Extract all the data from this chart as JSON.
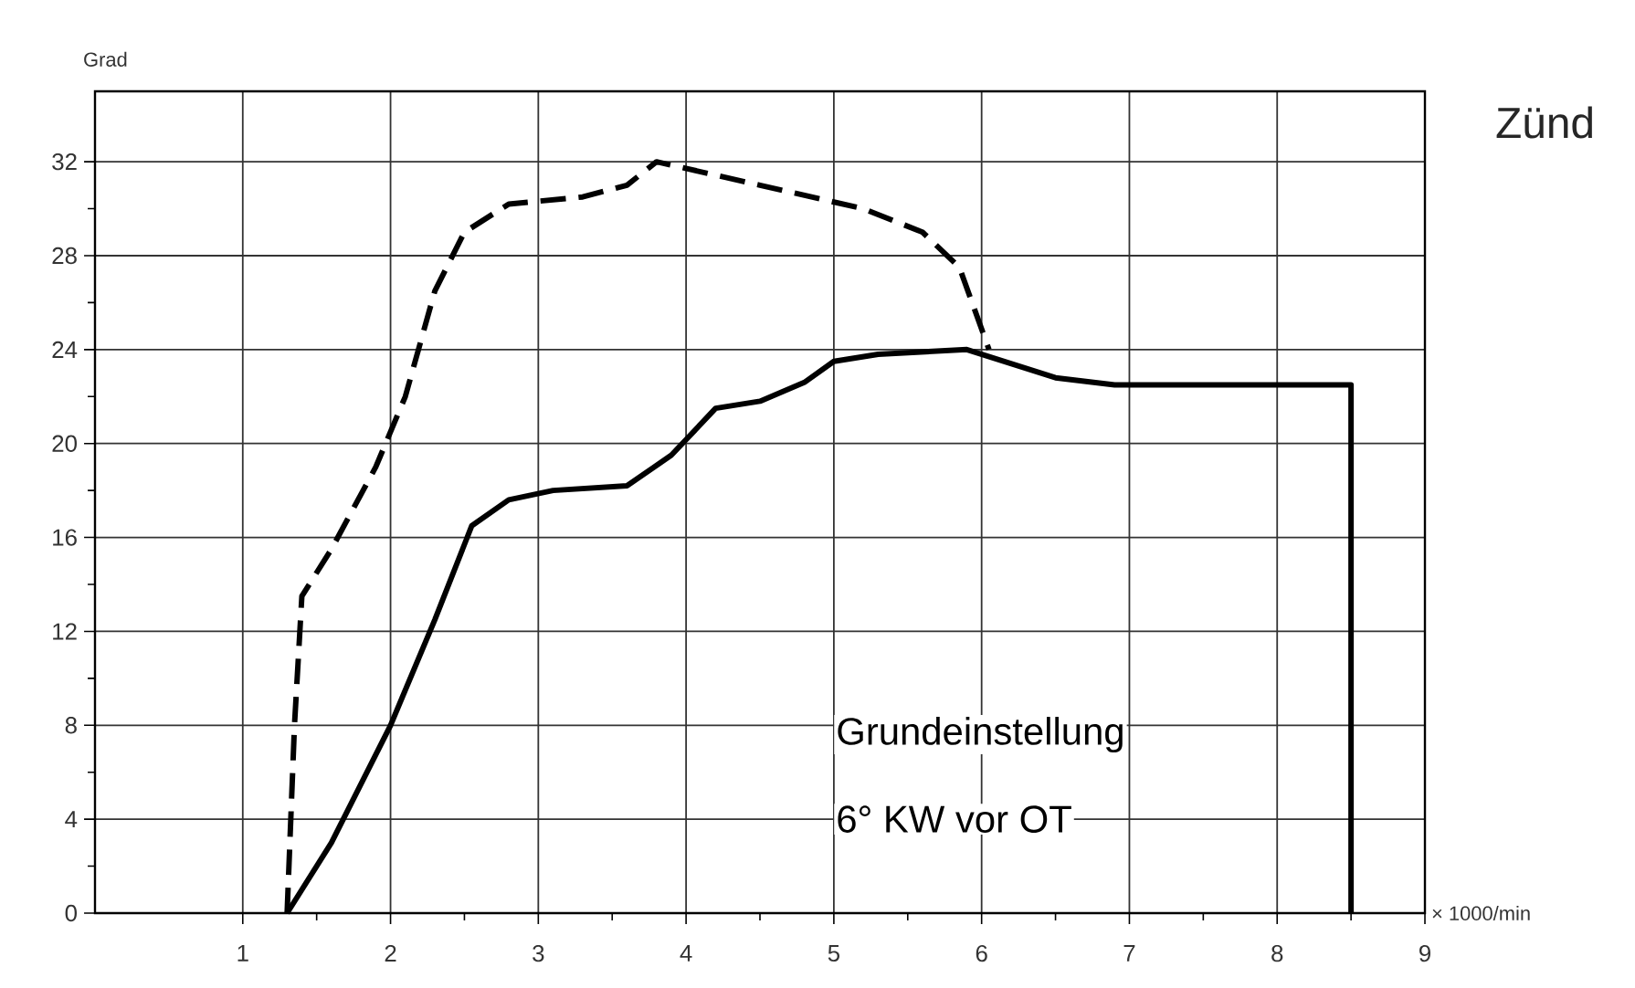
{
  "chart_data": {
    "type": "line",
    "title": "Zünd",
    "xlabel": "× 1000/min",
    "ylabel": "Grad",
    "xlim": [
      0,
      9
    ],
    "ylim": [
      0,
      35
    ],
    "xticks": [
      1,
      2,
      3,
      4,
      5,
      6,
      7,
      8,
      9
    ],
    "yticks": [
      0,
      4,
      8,
      12,
      16,
      20,
      24,
      28,
      32
    ],
    "grid": true,
    "series": [
      {
        "color": "#000000",
        "line_style": "dashed",
        "x": [
          1.3,
          1.35,
          1.4,
          1.6,
          1.9,
          2.1,
          2.3,
          2.5,
          2.8,
          3.3,
          3.6,
          3.8,
          4.5,
          5.2,
          5.6,
          5.85,
          6.05
        ],
        "values": [
          0,
          8,
          13.5,
          15.5,
          19,
          22,
          26.5,
          29,
          30.2,
          30.5,
          31,
          32,
          31,
          30,
          29,
          27.5,
          24
        ]
      },
      {
        "color": "#000000",
        "line_style": "solid",
        "x": [
          1.3,
          1.6,
          2.0,
          2.3,
          2.55,
          2.8,
          3.1,
          3.6,
          3.9,
          4.2,
          4.5,
          4.8,
          5.0,
          5.3,
          5.9,
          6.5,
          6.9,
          8.5,
          8.5
        ],
        "values": [
          0,
          3,
          8,
          12.5,
          16.5,
          17.6,
          18,
          18.2,
          19.5,
          21.5,
          21.8,
          22.6,
          23.5,
          23.8,
          24,
          22.8,
          22.5,
          22.5,
          0
        ]
      }
    ],
    "annotations": [
      "Grundeinstellung",
      "6° KW vor OT"
    ]
  }
}
